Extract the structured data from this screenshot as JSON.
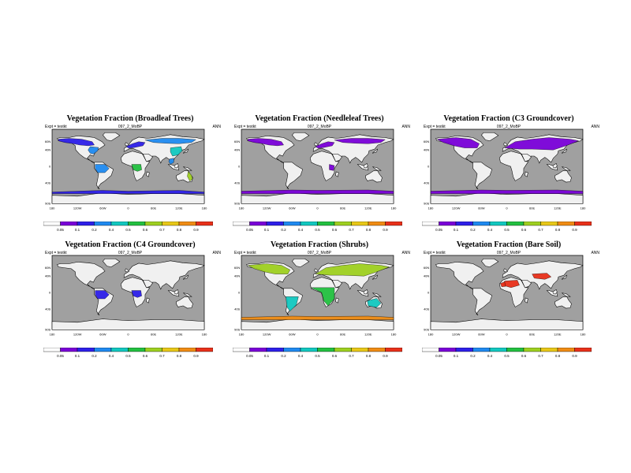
{
  "common": {
    "expt": "Expt = testkt",
    "run": "097_2_MoBP",
    "period": "ANN"
  },
  "colors": {
    "ocean": "#a0a0a0",
    "land": "#f0f0f0",
    "coast": "#000000",
    "fraction_bins": [
      "#ffffff",
      "#7a00d8",
      "#2d1fe8",
      "#1f8af0",
      "#12c8c0",
      "#22c040",
      "#9ed020",
      "#e8c818",
      "#f08c14",
      "#e8301a"
    ]
  },
  "map_axes": {
    "lat_labels": [
      "60N",
      "40N",
      "0",
      "40S",
      "90S"
    ],
    "lon_labels": [
      "180",
      "120W",
      "60W",
      "0",
      "60E",
      "120E",
      "180"
    ]
  },
  "colorbar": {
    "bin_edges": [
      0,
      0.05,
      0.1,
      0.2,
      0.4,
      0.5,
      0.6,
      0.7,
      0.8,
      0.9,
      1.0
    ]
  },
  "panels": [
    {
      "title": "Vegetation Fraction (Broadleaf Trees)",
      "colorbar_labels": [
        "0.05",
        "0.1",
        "0.2",
        "0.4",
        "0.5",
        "0.6",
        "0.7",
        "0.8",
        "0.9"
      ],
      "regions": [
        {
          "name": "north-america-boreal",
          "bin": 2
        },
        {
          "name": "eastern-north-america",
          "bin": 3
        },
        {
          "name": "europe",
          "bin": 2
        },
        {
          "name": "siberia",
          "bin": 3
        },
        {
          "name": "east-asia",
          "bin": 4
        },
        {
          "name": "amazonia",
          "bin": 3
        },
        {
          "name": "central-africa",
          "bin": 5
        },
        {
          "name": "southeast-asia",
          "bin": 3
        },
        {
          "name": "australia-coast",
          "bin": 6
        },
        {
          "name": "southern-ocean-band",
          "bin": 2
        }
      ]
    },
    {
      "title": "Vegetation Fraction (Needleleaf Trees)",
      "colorbar_labels": [
        "0.05",
        "0.1",
        "0.2",
        "0.4",
        "0.5",
        "0.6",
        "0.7",
        "0.8",
        "0.9"
      ],
      "regions": [
        {
          "name": "north-america-boreal",
          "bin": 1
        },
        {
          "name": "siberia",
          "bin": 1
        },
        {
          "name": "europe",
          "bin": 1
        },
        {
          "name": "africa-east",
          "bin": 1
        },
        {
          "name": "southern-band",
          "bin": 1
        }
      ]
    },
    {
      "title": "Vegetation Fraction (C3 Groundcover)",
      "colorbar_labels": [
        "0.05",
        "0.1",
        "0.2",
        "0.4",
        "0.5",
        "0.6",
        "0.7",
        "0.8",
        "0.9"
      ],
      "regions": [
        {
          "name": "north-america",
          "bin": 1
        },
        {
          "name": "eurasia",
          "bin": 1
        },
        {
          "name": "southern-band",
          "bin": 1
        }
      ]
    },
    {
      "title": "Vegetation Fraction (C4 Groundcover)",
      "colorbar_labels": [
        "0.05",
        "0.1",
        "0.2",
        "0.4",
        "0.5",
        "0.6",
        "0.7",
        "0.8",
        "0.9"
      ],
      "regions": [
        {
          "name": "amazonia",
          "bin": 2
        },
        {
          "name": "central-africa",
          "bin": 2
        }
      ]
    },
    {
      "title": "Vegetation Fraction (Shrubs)",
      "colorbar_labels": [
        "0.05",
        "0.1",
        "0.2",
        "0.4",
        "0.5",
        "0.6",
        "0.7",
        "0.8",
        "0.9"
      ],
      "regions": [
        {
          "name": "north-america",
          "bin": 6
        },
        {
          "name": "eurasia",
          "bin": 6
        },
        {
          "name": "south-america",
          "bin": 4
        },
        {
          "name": "africa",
          "bin": 5
        },
        {
          "name": "australia",
          "bin": 4
        },
        {
          "name": "southern-band",
          "bin": 8
        }
      ]
    },
    {
      "title": "Vegetation Fraction (Bare Soil)",
      "colorbar_labels": [
        "0.05",
        "0.1",
        "0.2",
        "0.4",
        "0.5",
        "0.6",
        "0.7",
        "0.8",
        "0.9"
      ],
      "regions": [
        {
          "name": "sahara",
          "bin": 9
        },
        {
          "name": "arabia-central-asia",
          "bin": 9
        },
        {
          "name": "north-africa-west",
          "bin": 9
        }
      ]
    }
  ]
}
